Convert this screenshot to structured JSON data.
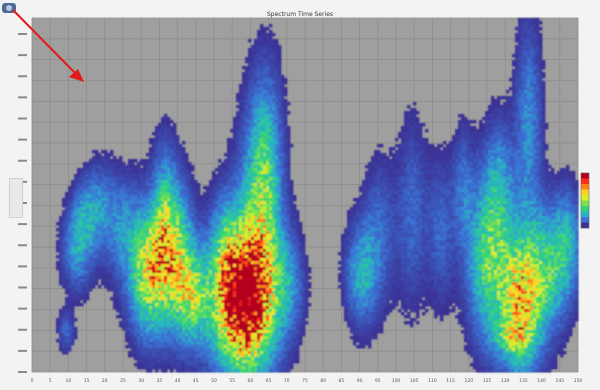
{
  "window": {
    "title": "Spectrum Time Series"
  },
  "toolbar": {
    "logo_icon": "sensor-logo-icon"
  },
  "annotation": {
    "arrow_color": "#e11b1b"
  },
  "colorbar": {
    "colors": [
      "#b3001e",
      "#ff2b1b",
      "#ff7f1a",
      "#ffd229",
      "#d8f02a",
      "#7ee24a",
      "#2fd37a",
      "#2ab3c4",
      "#3a73d6",
      "#3b2f92"
    ]
  },
  "chart_data": {
    "type": "heatmap",
    "title": "Spectrum Time Series",
    "xlabel": "",
    "ylabel": "",
    "background": "#9f9f9f",
    "grid": true,
    "x_ticks": [
      "0",
      "5",
      "10",
      "15",
      "20",
      "25",
      "30",
      "35",
      "40",
      "45",
      "50",
      "55",
      "60",
      "65",
      "70",
      "75",
      "80",
      "85",
      "90",
      "95",
      "100",
      "105",
      "110",
      "115",
      "120",
      "125",
      "130",
      "135",
      "140",
      "145",
      "150"
    ],
    "y_tick_count": 17,
    "xlim": [
      0,
      150
    ],
    "ylim": [
      0,
      1
    ],
    "intensity_range": [
      0,
      1
    ],
    "blobs": [
      {
        "x": 12,
        "w": 3.0,
        "y": 0.35,
        "h": 0.08,
        "a": 1.4
      },
      {
        "x": 14,
        "w": 2.5,
        "y": 0.45,
        "h": 0.07,
        "a": 1.0
      },
      {
        "x": 18,
        "w": 2.5,
        "y": 0.48,
        "h": 0.08,
        "a": 0.9
      },
      {
        "x": 24,
        "w": 4.0,
        "y": 0.42,
        "h": 0.1,
        "a": 1.2
      },
      {
        "x": 32,
        "w": 4.0,
        "y": 0.28,
        "h": 0.12,
        "a": 3.2
      },
      {
        "x": 36,
        "w": 2.5,
        "y": 0.44,
        "h": 0.14,
        "a": 1.8
      },
      {
        "x": 40,
        "w": 3.0,
        "y": 0.32,
        "h": 0.14,
        "a": 2.2
      },
      {
        "x": 44,
        "w": 3.0,
        "y": 0.22,
        "h": 0.09,
        "a": 2.0
      },
      {
        "x": 57,
        "w": 6.0,
        "y": 0.2,
        "h": 0.14,
        "a": 4.8
      },
      {
        "x": 62,
        "w": 4.0,
        "y": 0.4,
        "h": 0.24,
        "a": 2.0
      },
      {
        "x": 64,
        "w": 3.0,
        "y": 0.6,
        "h": 0.18,
        "a": 1.2
      },
      {
        "x": 53,
        "w": 3.0,
        "y": 0.35,
        "h": 0.12,
        "a": 1.2
      },
      {
        "x": 70,
        "w": 3.0,
        "y": 0.25,
        "h": 0.1,
        "a": 1.2
      },
      {
        "x": 90,
        "w": 3.0,
        "y": 0.28,
        "h": 0.1,
        "a": 1.6
      },
      {
        "x": 95,
        "w": 3.0,
        "y": 0.4,
        "h": 0.14,
        "a": 0.9
      },
      {
        "x": 104,
        "w": 3.0,
        "y": 0.45,
        "h": 0.18,
        "a": 0.9
      },
      {
        "x": 112,
        "w": 2.5,
        "y": 0.4,
        "h": 0.14,
        "a": 0.9
      },
      {
        "x": 118,
        "w": 2.0,
        "y": 0.52,
        "h": 0.12,
        "a": 0.9
      },
      {
        "x": 125,
        "w": 4.0,
        "y": 0.32,
        "h": 0.16,
        "a": 2.4
      },
      {
        "x": 128,
        "w": 3.0,
        "y": 0.55,
        "h": 0.12,
        "a": 1.1
      },
      {
        "x": 134,
        "w": 4.0,
        "y": 0.2,
        "h": 0.14,
        "a": 3.4
      },
      {
        "x": 136,
        "w": 2.5,
        "y": 0.7,
        "h": 0.2,
        "a": 1.3
      },
      {
        "x": 142,
        "w": 4.0,
        "y": 0.3,
        "h": 0.12,
        "a": 2.0
      },
      {
        "x": 147,
        "w": 2.5,
        "y": 0.38,
        "h": 0.1,
        "a": 1.2
      },
      {
        "x": 9,
        "w": 1.5,
        "y": 0.12,
        "h": 0.04,
        "a": 0.9
      },
      {
        "x": 131,
        "w": 3.0,
        "y": 0.1,
        "h": 0.03,
        "a": 1.1
      }
    ]
  }
}
